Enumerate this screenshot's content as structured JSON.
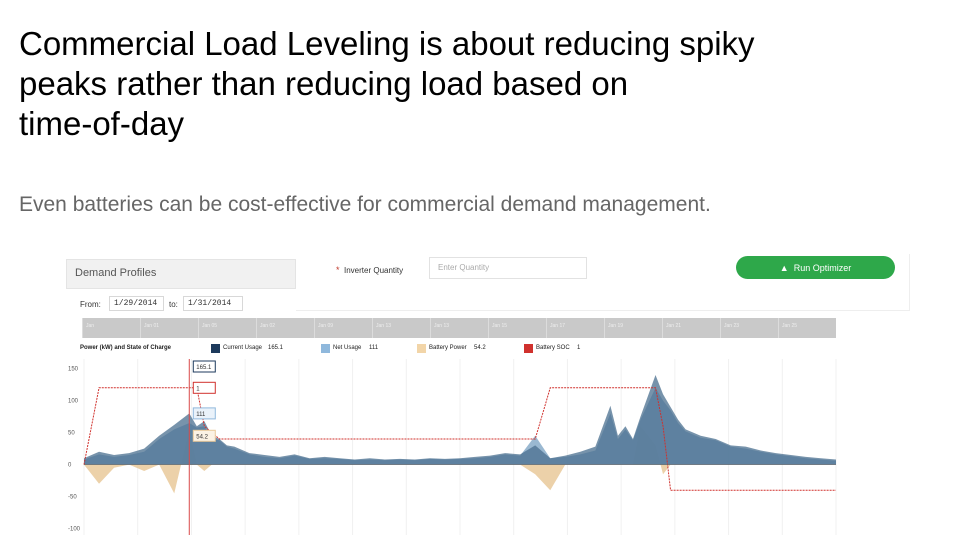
{
  "slide": {
    "title_lines": [
      "Commercial Load Leveling is about reducing spiky",
      "peaks rather than reducing load based on",
      "time-of-day"
    ],
    "subtitle": "Even batteries can be cost-effective for commercial demand management."
  },
  "app": {
    "panel_title": "Demand Profiles",
    "inverter_label": "Inverter Quantity",
    "inverter_required_mark": "*",
    "inverter_placeholder": "Enter Quantity",
    "run_button_label": "Run Optimizer",
    "from_label": "From:",
    "from_date": "1/29/2014",
    "to_label": "to:",
    "to_date": "1/31/2014"
  },
  "navigator": {
    "labels": [
      "Jan",
      "Jan 01",
      "Jan 05",
      "Jan 02",
      "Jan 09",
      "Jan 13",
      "Jan 13",
      "Jan 15",
      "Jan 17",
      "Jan 19",
      "Jan 21",
      "Jan 23",
      "Jan 25"
    ]
  },
  "legend": {
    "title": "Power (kW) and State of Charge",
    "items": [
      {
        "label": "Current Usage",
        "value": "165.1",
        "color": "#1d3a5c"
      },
      {
        "label": "Net Usage",
        "value": "111",
        "color": "#8fb8dc"
      },
      {
        "label": "Battery Power",
        "value": "54.2",
        "color": "#f2d5a8"
      },
      {
        "label": "Battery SOC",
        "value": "1",
        "color": "#d0312d"
      }
    ]
  },
  "tooltip": {
    "current": "165.1",
    "soc": "1",
    "net": "111",
    "battery": "54.2"
  },
  "colors": {
    "current_usage": "#4a6f8f",
    "net_usage": "#8fb0cc",
    "battery_power": "#e9c99a",
    "battery_soc": "#d0312d",
    "crosshair": "#d94a4a",
    "run_button": "#2ea84a"
  },
  "chart_data": {
    "type": "area",
    "y_ticks": [
      "150",
      "100",
      "50",
      "0",
      "-50",
      "-100"
    ],
    "ylim": [
      -110,
      165
    ],
    "x": [
      0,
      2,
      4,
      6,
      8,
      10,
      12,
      14,
      15,
      16,
      17,
      18,
      19,
      20,
      22,
      24,
      26,
      28,
      30,
      32,
      34,
      36,
      38,
      40,
      42,
      44,
      46,
      48,
      50,
      52,
      54,
      56,
      58,
      60,
      62,
      64,
      66,
      68,
      70,
      71,
      72,
      73,
      74,
      76,
      77,
      78,
      79,
      80,
      82,
      84,
      86,
      88,
      90,
      92,
      94,
      96,
      98,
      100
    ],
    "series": [
      {
        "name": "Current Usage",
        "values": [
          10,
          20,
          15,
          18,
          25,
          45,
          62,
          80,
          60,
          68,
          45,
          40,
          30,
          28,
          18,
          15,
          12,
          16,
          10,
          12,
          10,
          8,
          10,
          8,
          9,
          8,
          10,
          9,
          10,
          12,
          14,
          18,
          16,
          30,
          10,
          14,
          20,
          28,
          92,
          45,
          60,
          40,
          75,
          140,
          110,
          90,
          70,
          55,
          45,
          40,
          30,
          28,
          22,
          18,
          15,
          12,
          10,
          8
        ]
      },
      {
        "name": "Net Usage",
        "values": [
          8,
          16,
          12,
          15,
          20,
          40,
          55,
          65,
          58,
          60,
          40,
          38,
          28,
          25,
          16,
          12,
          10,
          14,
          9,
          10,
          9,
          7,
          8,
          7,
          8,
          7,
          9,
          8,
          9,
          10,
          12,
          16,
          14,
          45,
          10,
          12,
          16,
          22,
          80,
          40,
          55,
          38,
          70,
          120,
          100,
          85,
          65,
          52,
          42,
          38,
          28,
          25,
          20,
          16,
          13,
          10,
          8,
          6
        ]
      },
      {
        "name": "Battery Power",
        "values": [
          0,
          -30,
          -5,
          0,
          -10,
          0,
          -45,
          54,
          0,
          -10,
          0,
          0,
          0,
          0,
          0,
          0,
          0,
          0,
          0,
          0,
          0,
          0,
          0,
          0,
          0,
          0,
          0,
          0,
          0,
          0,
          0,
          0,
          0,
          -15,
          -40,
          0,
          0,
          0,
          0,
          0,
          0,
          0,
          60,
          30,
          -15,
          0,
          0,
          0,
          0,
          0,
          0,
          0,
          0,
          0,
          0,
          0,
          0,
          0
        ]
      },
      {
        "name": "Battery SOC",
        "values": [
          0,
          120,
          120,
          120,
          120,
          120,
          120,
          120,
          120,
          60,
          50,
          40,
          40,
          40,
          40,
          40,
          40,
          40,
          40,
          40,
          40,
          40,
          40,
          40,
          40,
          40,
          40,
          40,
          40,
          40,
          40,
          40,
          40,
          40,
          120,
          120,
          120,
          120,
          120,
          120,
          120,
          120,
          120,
          120,
          60,
          -40,
          -40,
          -40,
          -40,
          -40,
          -40,
          -40,
          -40,
          -40,
          -40,
          -40,
          -40,
          -40
        ]
      }
    ]
  }
}
